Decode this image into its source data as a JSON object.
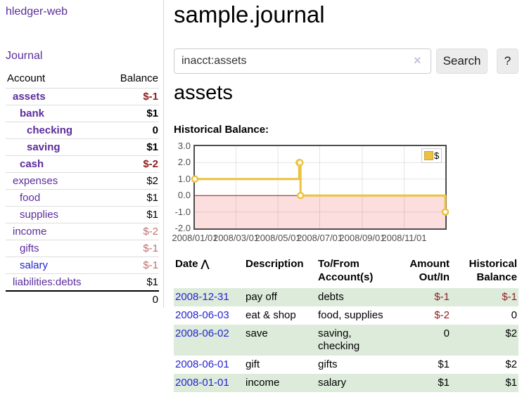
{
  "app": {
    "title": "hledger-web",
    "nav_journal_label": "Journal"
  },
  "sidebar": {
    "header": {
      "account": "Account",
      "balance": "Balance"
    },
    "accounts": [
      {
        "name": "assets",
        "level": 1,
        "bold": true,
        "balance": "$-1",
        "balance_color": "neg-dark",
        "link_color": "purple"
      },
      {
        "name": "bank",
        "level": 2,
        "bold": true,
        "balance": "$1",
        "balance_color": "normal",
        "link_color": "purple"
      },
      {
        "name": "checking",
        "level": 3,
        "bold": true,
        "balance": "0",
        "balance_color": "normal",
        "link_color": "purple"
      },
      {
        "name": "saving",
        "level": 3,
        "bold": true,
        "balance": "$1",
        "balance_color": "normal",
        "link_color": "purple"
      },
      {
        "name": "cash",
        "level": 2,
        "bold": true,
        "balance": "$-2",
        "balance_color": "neg-dark",
        "link_color": "purple"
      },
      {
        "name": "expenses",
        "level": 1,
        "bold": false,
        "balance": "$2",
        "balance_color": "normal",
        "link_color": "purple"
      },
      {
        "name": "food",
        "level": 2,
        "bold": false,
        "balance": "$1",
        "balance_color": "normal",
        "link_color": "purple"
      },
      {
        "name": "supplies",
        "level": 2,
        "bold": false,
        "balance": "$1",
        "balance_color": "normal",
        "link_color": "purple"
      },
      {
        "name": "income",
        "level": 1,
        "bold": false,
        "balance": "$-2",
        "balance_color": "neg-light",
        "link_color": "purple"
      },
      {
        "name": "gifts",
        "level": 2,
        "bold": false,
        "balance": "$-1",
        "balance_color": "neg-light",
        "link_color": "purple"
      },
      {
        "name": "salary",
        "level": 2,
        "bold": false,
        "balance": "$-1",
        "balance_color": "neg-light",
        "link_color": "blue"
      },
      {
        "name": "liabilities:debts",
        "level": 1,
        "bold": false,
        "balance": "$1",
        "balance_color": "normal",
        "link_color": "purple"
      }
    ],
    "total": "0"
  },
  "main": {
    "title": "sample.journal",
    "search": {
      "value": "inacct:assets",
      "clear_icon": "×",
      "button_label": "Search",
      "help_label": "?"
    },
    "account_heading": "assets",
    "chart_label": "Historical Balance:"
  },
  "chart_data": {
    "type": "line",
    "title": "Historical Balance",
    "xlim": [
      "2008-01-01",
      "2008-12-31"
    ],
    "ylim": [
      -2,
      3
    ],
    "y_ticks": [
      "3.0",
      "2.0",
      "1.0",
      "0.0",
      "-1.0",
      "-2.0"
    ],
    "x_ticks": [
      "2008/01/01",
      "2008/03/01",
      "2008/05/01",
      "2008/07/01",
      "2008/09/01",
      "2008/11/01"
    ],
    "grid": true,
    "legend_position": "top-right",
    "legend_label": "$",
    "series": [
      {
        "name": "$",
        "color": "#EDC240",
        "step": true,
        "points": [
          [
            "2008-01-01",
            1
          ],
          [
            "2008-06-01",
            2
          ],
          [
            "2008-06-02",
            2
          ],
          [
            "2008-06-03",
            0
          ],
          [
            "2008-12-31",
            -1
          ]
        ]
      }
    ],
    "negative_region_color": "#fcdede",
    "zero_line_color": "#8c2020"
  },
  "register": {
    "headers": {
      "date": "Date",
      "sort_icon": "⋀",
      "description": "Description",
      "accounts": "To/From Account(s)",
      "amount": "Amount Out/In",
      "balance": "Historical Balance"
    },
    "rows": [
      {
        "date": "2008-12-31",
        "description": "pay off",
        "accounts": "debts",
        "amount": "$-1",
        "amount_neg": true,
        "balance": "$-1",
        "balance_neg": true
      },
      {
        "date": "2008-06-03",
        "description": "eat & shop",
        "accounts": "food, supplies",
        "amount": "$-2",
        "amount_neg": true,
        "balance": "0",
        "balance_neg": false
      },
      {
        "date": "2008-06-02",
        "description": "save",
        "accounts": "saving, checking",
        "amount": "0",
        "amount_neg": false,
        "balance": "$2",
        "balance_neg": false
      },
      {
        "date": "2008-06-01",
        "description": "gift",
        "accounts": "gifts",
        "amount": "$1",
        "amount_neg": false,
        "balance": "$2",
        "balance_neg": false
      },
      {
        "date": "2008-01-01",
        "description": "income",
        "accounts": "salary",
        "amount": "$1",
        "amount_neg": false,
        "balance": "$1",
        "balance_neg": false
      }
    ]
  }
}
